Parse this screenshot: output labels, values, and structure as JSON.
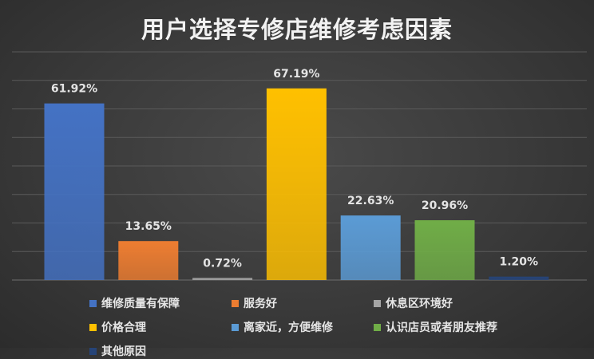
{
  "chart_data": {
    "type": "bar",
    "title": "用户选择专修店维修考虑因素",
    "categories": [
      "维修质量有保障",
      "服务好",
      "休息区环境好",
      "价格合理",
      "离家近，方便维修",
      "认识店员或者朋友推荐",
      "其他原因"
    ],
    "values": [
      61.92,
      13.65,
      0.72,
      67.19,
      22.63,
      20.96,
      1.2
    ],
    "value_labels": [
      "61.92%",
      "13.65%",
      "0.72%",
      "67.19%",
      "22.63%",
      "20.96%",
      "1.20%"
    ],
    "colors": [
      "#4472c4",
      "#ed7d31",
      "#a5a5a5",
      "#ffc000",
      "#5b9bd5",
      "#70ad47",
      "#264478"
    ],
    "ylim": [
      0,
      80
    ],
    "grid": true,
    "legend_position": "bottom"
  }
}
